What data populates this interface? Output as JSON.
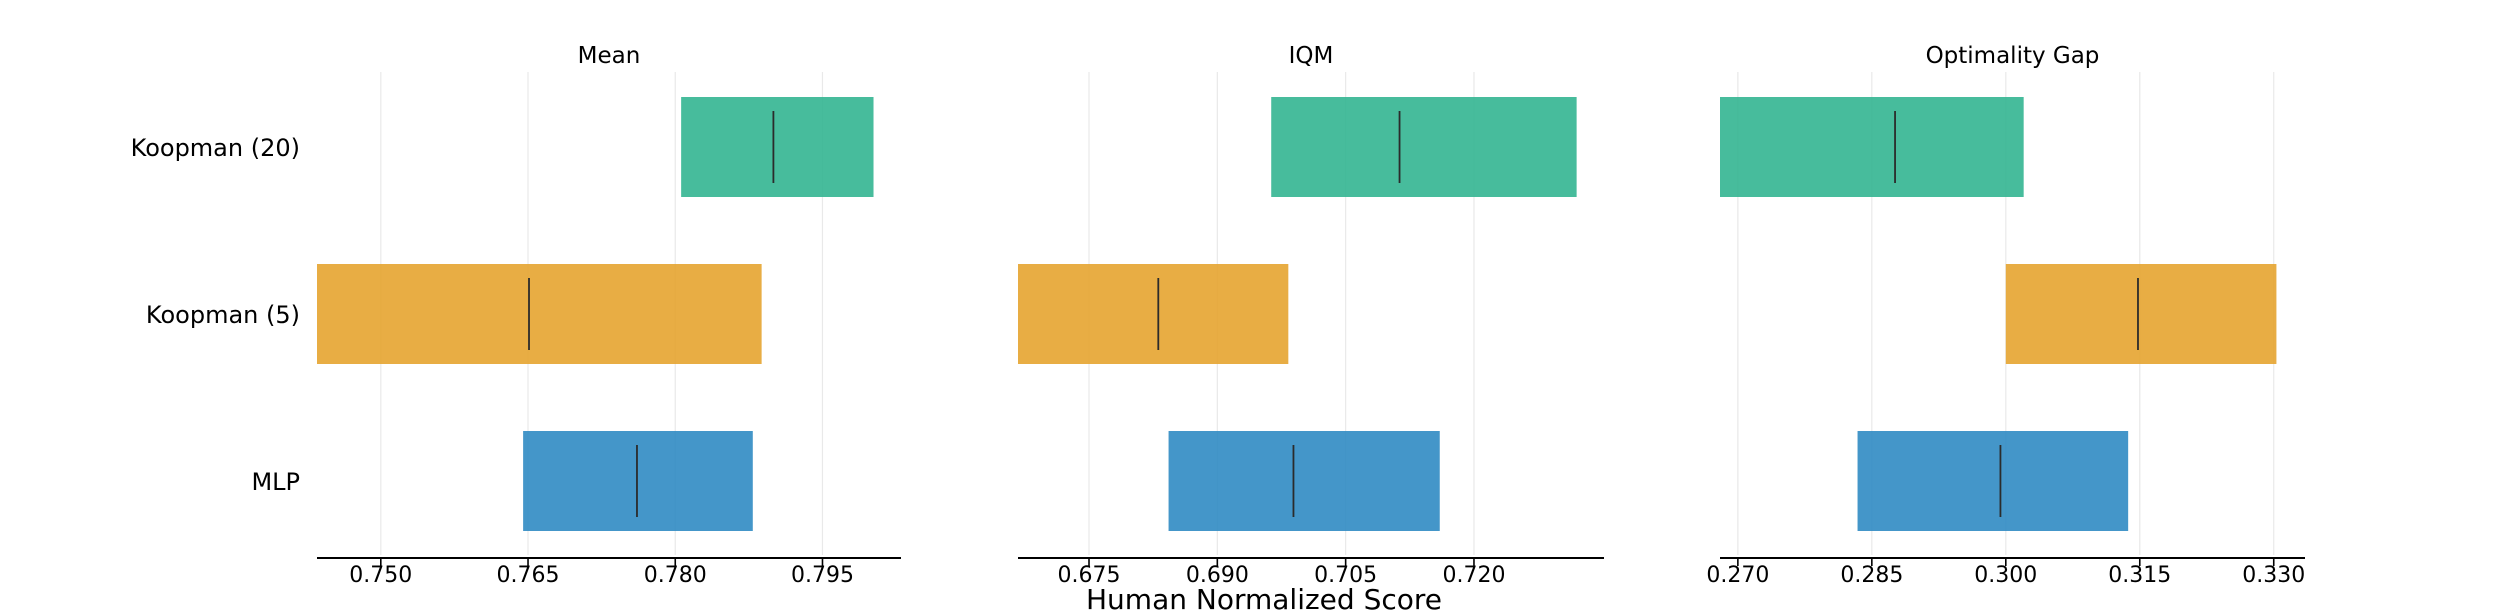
{
  "chart_data": {
    "type": "interval",
    "categories": [
      "Koopman (20)",
      "Koopman (5)",
      "MLP"
    ],
    "colors": {
      "Koopman (20)": "#2db38e",
      "Koopman (5)": "#e5a22a",
      "MLP": "#2a88c1"
    },
    "xlabel": "Human Normalized Score",
    "panels": [
      {
        "title": "Mean",
        "xlim": [
          0.7435,
          0.803
        ],
        "ticks": [
          0.75,
          0.765,
          0.78,
          0.795
        ],
        "tick_labels": [
          "0.750",
          "0.765",
          "0.780",
          "0.795"
        ],
        "intervals": [
          {
            "name": "Koopman (20)",
            "low": 0.7806,
            "high": 0.8002,
            "point": 0.79
          },
          {
            "name": "Koopman (5)",
            "low": 0.7435,
            "high": 0.7888,
            "point": 0.7651
          },
          {
            "name": "MLP",
            "low": 0.7645,
            "high": 0.7879,
            "point": 0.7761
          }
        ]
      },
      {
        "title": "IQM",
        "xlim": [
          0.6667,
          0.7352
        ],
        "ticks": [
          0.675,
          0.69,
          0.705,
          0.72
        ],
        "tick_labels": [
          "0.675",
          "0.690",
          "0.705",
          "0.720"
        ],
        "intervals": [
          {
            "name": "Koopman (20)",
            "low": 0.6963,
            "high": 0.732,
            "point": 0.7113
          },
          {
            "name": "Koopman (5)",
            "low": 0.6667,
            "high": 0.6983,
            "point": 0.6831
          },
          {
            "name": "MLP",
            "low": 0.6843,
            "high": 0.716,
            "point": 0.6989
          }
        ]
      },
      {
        "title": "Optimality Gap",
        "xlim": [
          0.268,
          0.3335
        ],
        "ticks": [
          0.27,
          0.285,
          0.3,
          0.315,
          0.33
        ],
        "tick_labels": [
          "0.270",
          "0.285",
          "0.300",
          "0.315",
          "0.330"
        ],
        "intervals": [
          {
            "name": "Koopman (20)",
            "low": 0.268,
            "high": 0.302,
            "point": 0.2876
          },
          {
            "name": "Koopman (5)",
            "low": 0.3,
            "high": 0.3303,
            "point": 0.3148
          },
          {
            "name": "MLP",
            "low": 0.2834,
            "high": 0.3137,
            "point": 0.2994
          }
        ]
      }
    ]
  }
}
